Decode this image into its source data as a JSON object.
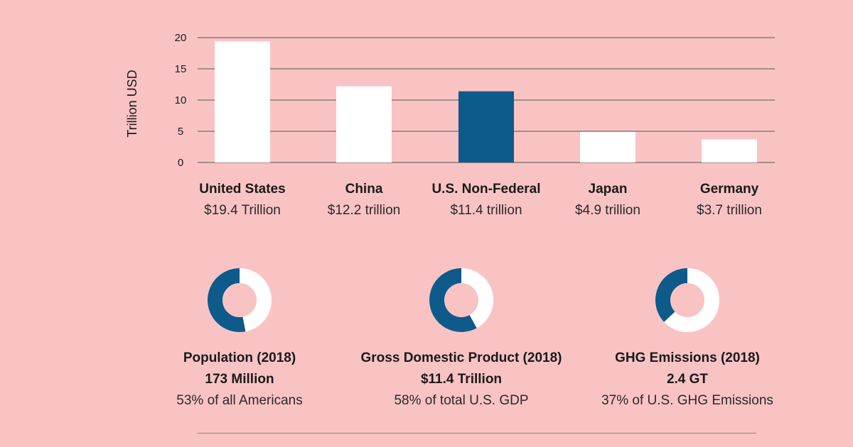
{
  "chart_data": [
    {
      "type": "bar",
      "ylabel": "Trillion USD",
      "ylim": [
        0,
        20
      ],
      "yticks": [
        0,
        5,
        10,
        15,
        20
      ],
      "grid": true,
      "categories": [
        "United States",
        "China",
        "U.S. Non-Federal",
        "Japan",
        "Germany"
      ],
      "values": [
        19.4,
        12.2,
        11.4,
        4.9,
        3.7
      ],
      "value_labels": [
        "$19.4 Trillion",
        "$12.2 trillion",
        "$11.4 trillion",
        "$4.9 trillion",
        "$3.7 trillion"
      ],
      "highlight_index": 2
    },
    {
      "type": "pie",
      "title": "Population (2018)",
      "value_label": "173 Million",
      "subtitle": "53% of all Americans",
      "share_percent": 53
    },
    {
      "type": "pie",
      "title": "Gross Domestic Product (2018)",
      "value_label": "$11.4 Trillion",
      "subtitle": "58% of total U.S. GDP",
      "share_percent": 58
    },
    {
      "type": "pie",
      "title": "GHG Emissions (2018)",
      "value_label": "2.4 GT",
      "subtitle": "37% of U.S. GHG Emissions",
      "share_percent": 37
    }
  ],
  "colors": {
    "background": "#f9c3c4",
    "bar": "#ffffff",
    "highlight": "#0e5a8a",
    "donut_rest": "#ffffff",
    "axis_line": "#555555"
  }
}
